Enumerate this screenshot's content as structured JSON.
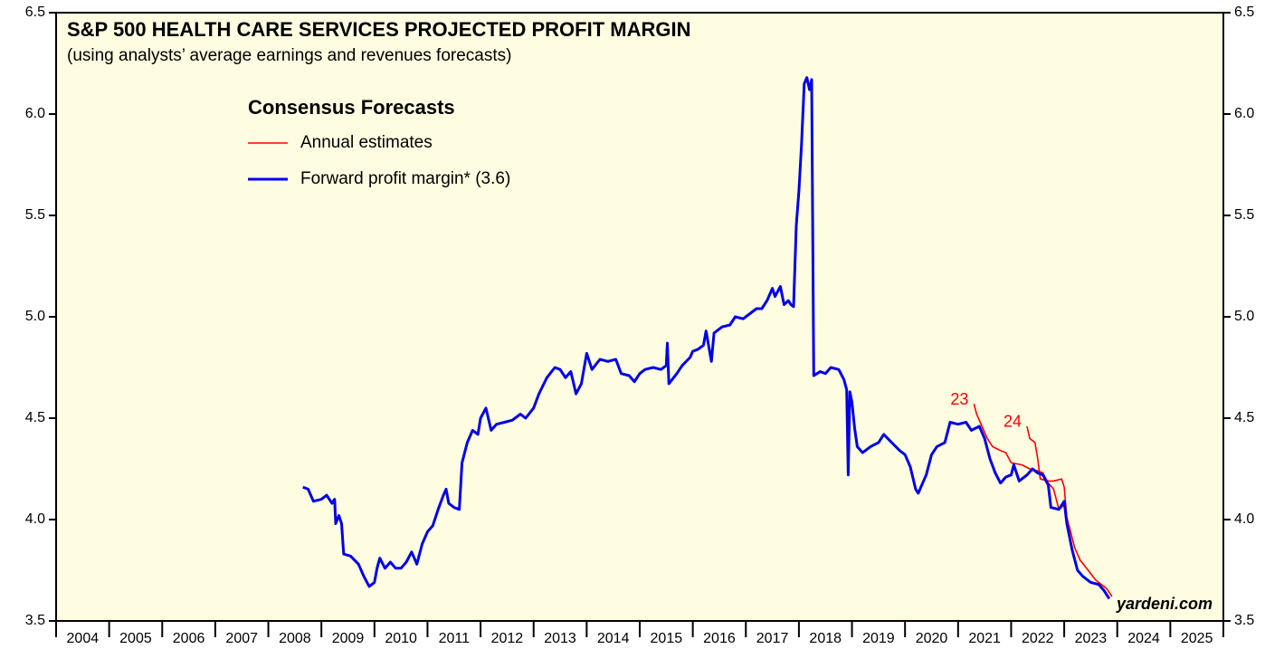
{
  "chart_data": {
    "type": "line",
    "title": "S&P 500 HEALTH CARE SERVICES PROJECTED PROFIT MARGIN",
    "subtitle": "(using analysts’ average earnings and revenues forecasts)",
    "legend_title": "Consensus Forecasts",
    "watermark": "yardeni.com",
    "background": "#fffde1",
    "categories": [
      "2004",
      "2005",
      "2006",
      "2007",
      "2008",
      "2009",
      "2010",
      "2011",
      "2012",
      "2013",
      "2014",
      "2015",
      "2016",
      "2017",
      "2018",
      "2019",
      "2020",
      "2021",
      "2022",
      "2023",
      "2024",
      "2025"
    ],
    "xlim": [
      2004,
      2026
    ],
    "xticks": [
      2004,
      2005,
      2006,
      2007,
      2008,
      2009,
      2010,
      2011,
      2012,
      2013,
      2014,
      2015,
      2016,
      2017,
      2018,
      2019,
      2020,
      2021,
      2022,
      2023,
      2024,
      2025,
      2026
    ],
    "ylim": [
      3.5,
      6.5
    ],
    "yticks": [
      {
        "value": 3.5,
        "label": "3.5"
      },
      {
        "value": 4,
        "label": "4.0"
      },
      {
        "value": 4.5,
        "label": "4.5"
      },
      {
        "value": 5,
        "label": "5.0"
      },
      {
        "value": 5.5,
        "label": "5.5"
      },
      {
        "value": 6,
        "label": "6.0"
      },
      {
        "value": 6.5,
        "label": "6.5"
      }
    ],
    "series": [
      {
        "name": "Forward profit margin* (3.6)",
        "color": "#0000e6",
        "x": [
          2008.65,
          2008.75,
          2008.85,
          2009.0,
          2009.1,
          2009.2,
          2009.25,
          2009.27,
          2009.33,
          2009.38,
          2009.42,
          2009.55,
          2009.7,
          2009.8,
          2009.9,
          2010.0,
          2010.05,
          2010.1,
          2010.2,
          2010.3,
          2010.4,
          2010.5,
          2010.6,
          2010.7,
          2010.8,
          2010.9,
          2011.0,
          2011.1,
          2011.2,
          2011.3,
          2011.35,
          2011.4,
          2011.5,
          2011.6,
          2011.65,
          2011.75,
          2011.85,
          2011.95,
          2012.0,
          2012.1,
          2012.2,
          2012.3,
          2012.45,
          2012.6,
          2012.75,
          2012.85,
          2013.0,
          2013.1,
          2013.25,
          2013.4,
          2013.5,
          2013.6,
          2013.7,
          2013.8,
          2013.9,
          2014.0,
          2014.1,
          2014.25,
          2014.4,
          2014.55,
          2014.65,
          2014.8,
          2014.9,
          2015.0,
          2015.1,
          2015.25,
          2015.4,
          2015.5,
          2015.52,
          2015.55,
          2015.7,
          2015.8,
          2015.95,
          2016.0,
          2016.1,
          2016.2,
          2016.25,
          2016.35,
          2016.4,
          2016.55,
          2016.7,
          2016.8,
          2016.95,
          2017.1,
          2017.2,
          2017.3,
          2017.4,
          2017.5,
          2017.55,
          2017.65,
          2017.72,
          2017.8,
          2017.85,
          2017.9,
          2017.95,
          2018.0,
          2018.05,
          2018.1,
          2018.15,
          2018.2,
          2018.24,
          2018.28,
          2018.4,
          2018.5,
          2018.6,
          2018.75,
          2018.85,
          2018.9,
          2018.93,
          2018.96,
          2019.0,
          2019.05,
          2019.1,
          2019.2,
          2019.35,
          2019.5,
          2019.6,
          2019.75,
          2019.9,
          2020.0,
          2020.1,
          2020.2,
          2020.25,
          2020.4,
          2020.5,
          2020.6,
          2020.75,
          2020.85,
          2021.0,
          2021.15,
          2021.25,
          2021.4,
          2021.5,
          2021.6,
          2021.7,
          2021.8,
          2021.9,
          2022.0,
          2022.05,
          2022.15,
          2022.3,
          2022.4,
          2022.5,
          2022.6,
          2022.7,
          2022.75,
          2022.9,
          2023.0,
          2023.05,
          2023.15,
          2023.25,
          2023.35,
          2023.5,
          2023.65,
          2023.75,
          2023.85
        ],
        "values": [
          4.16,
          4.15,
          4.09,
          4.1,
          4.12,
          4.08,
          4.1,
          3.98,
          4.02,
          3.98,
          3.83,
          3.82,
          3.78,
          3.72,
          3.67,
          3.69,
          3.76,
          3.81,
          3.76,
          3.79,
          3.76,
          3.76,
          3.79,
          3.84,
          3.78,
          3.88,
          3.94,
          3.97,
          4.05,
          4.12,
          4.15,
          4.08,
          4.06,
          4.05,
          4.28,
          4.38,
          4.44,
          4.42,
          4.5,
          4.55,
          4.44,
          4.47,
          4.48,
          4.49,
          4.52,
          4.5,
          4.55,
          4.62,
          4.7,
          4.75,
          4.74,
          4.7,
          4.73,
          4.62,
          4.67,
          4.82,
          4.74,
          4.79,
          4.78,
          4.79,
          4.72,
          4.71,
          4.68,
          4.72,
          4.74,
          4.75,
          4.74,
          4.76,
          4.87,
          4.67,
          4.72,
          4.76,
          4.8,
          4.83,
          4.84,
          4.86,
          4.93,
          4.78,
          4.92,
          4.95,
          4.96,
          5.0,
          4.99,
          5.02,
          5.04,
          5.04,
          5.08,
          5.14,
          5.1,
          5.15,
          5.06,
          5.08,
          5.06,
          5.05,
          5.45,
          5.62,
          5.85,
          6.15,
          6.18,
          6.12,
          6.17,
          4.71,
          4.73,
          4.72,
          4.75,
          4.74,
          4.69,
          4.64,
          4.22,
          4.63,
          4.58,
          4.45,
          4.36,
          4.33,
          4.36,
          4.38,
          4.42,
          4.38,
          4.34,
          4.32,
          4.26,
          4.15,
          4.13,
          4.22,
          4.32,
          4.36,
          4.38,
          4.48,
          4.47,
          4.48,
          4.44,
          4.46,
          4.4,
          4.3,
          4.23,
          4.18,
          4.21,
          4.22,
          4.27,
          4.19,
          4.22,
          4.25,
          4.23,
          4.22,
          4.17,
          4.06,
          4.05,
          4.09,
          3.98,
          3.85,
          3.75,
          3.72,
          3.69,
          3.68,
          3.65,
          3.61
        ]
      }
    ],
    "annual_estimates": {
      "name": "Annual estimates",
      "color": "#ff0000",
      "series": [
        {
          "label": "23",
          "x": [
            2021.3,
            2021.35,
            2021.45,
            2021.55,
            2021.65,
            2021.8,
            2021.9,
            2022.0,
            2022.2,
            2022.35,
            2022.5,
            2022.6,
            2022.7,
            2022.8,
            2022.9,
            2023.0,
            2023.05
          ],
          "values": [
            4.57,
            4.52,
            4.46,
            4.4,
            4.36,
            4.34,
            4.33,
            4.28,
            4.27,
            4.25,
            4.24,
            4.23,
            4.18,
            4.15,
            4.05,
            4.07,
            4.0
          ]
        },
        {
          "label": "24",
          "x": [
            2022.3,
            2022.35,
            2022.45,
            2022.5,
            2022.55,
            2022.7,
            2022.8,
            2022.95,
            2023.0,
            2023.05,
            2023.1,
            2023.2,
            2023.3,
            2023.45,
            2023.6,
            2023.8,
            2023.9
          ],
          "values": [
            4.46,
            4.4,
            4.38,
            4.3,
            4.2,
            4.19,
            4.19,
            4.2,
            4.16,
            4.01,
            3.96,
            3.86,
            3.8,
            3.75,
            3.7,
            3.66,
            3.62
          ]
        }
      ]
    }
  }
}
